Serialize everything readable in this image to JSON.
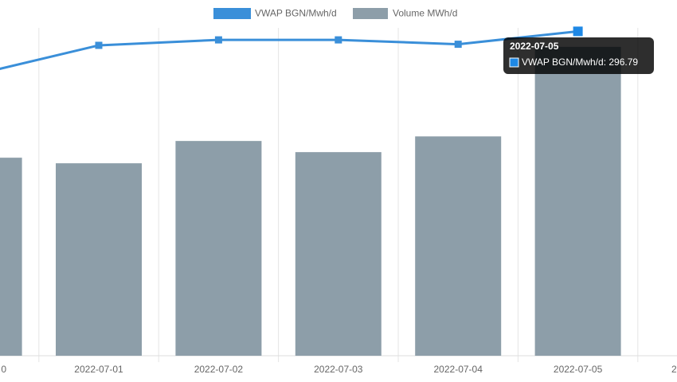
{
  "chart_data": {
    "type": "bar-line",
    "categories": [
      "0",
      "2022-07-01",
      "2022-07-02",
      "2022-07-03",
      "2022-07-04",
      "2022-07-05",
      "2"
    ],
    "series": [
      {
        "name": "VWAP BGN/Mwh/d",
        "type": "line",
        "axis": "y2",
        "color": "#3a8fd9",
        "values": [
          258,
          284,
          289,
          289,
          285,
          296.79,
          null
        ]
      },
      {
        "name": "Volume MWh/d",
        "type": "bar",
        "color": "#8d9ea9",
        "values": [
          60.4,
          58.7,
          65.5,
          62.1,
          66.9,
          94.2,
          null
        ]
      }
    ],
    "ylim": [
      0,
      100
    ],
    "y2lim": [
      0,
      300
    ],
    "grid": true,
    "legend": "top",
    "tooltip": {
      "category": 5,
      "series": 0,
      "separator": ": "
    }
  }
}
